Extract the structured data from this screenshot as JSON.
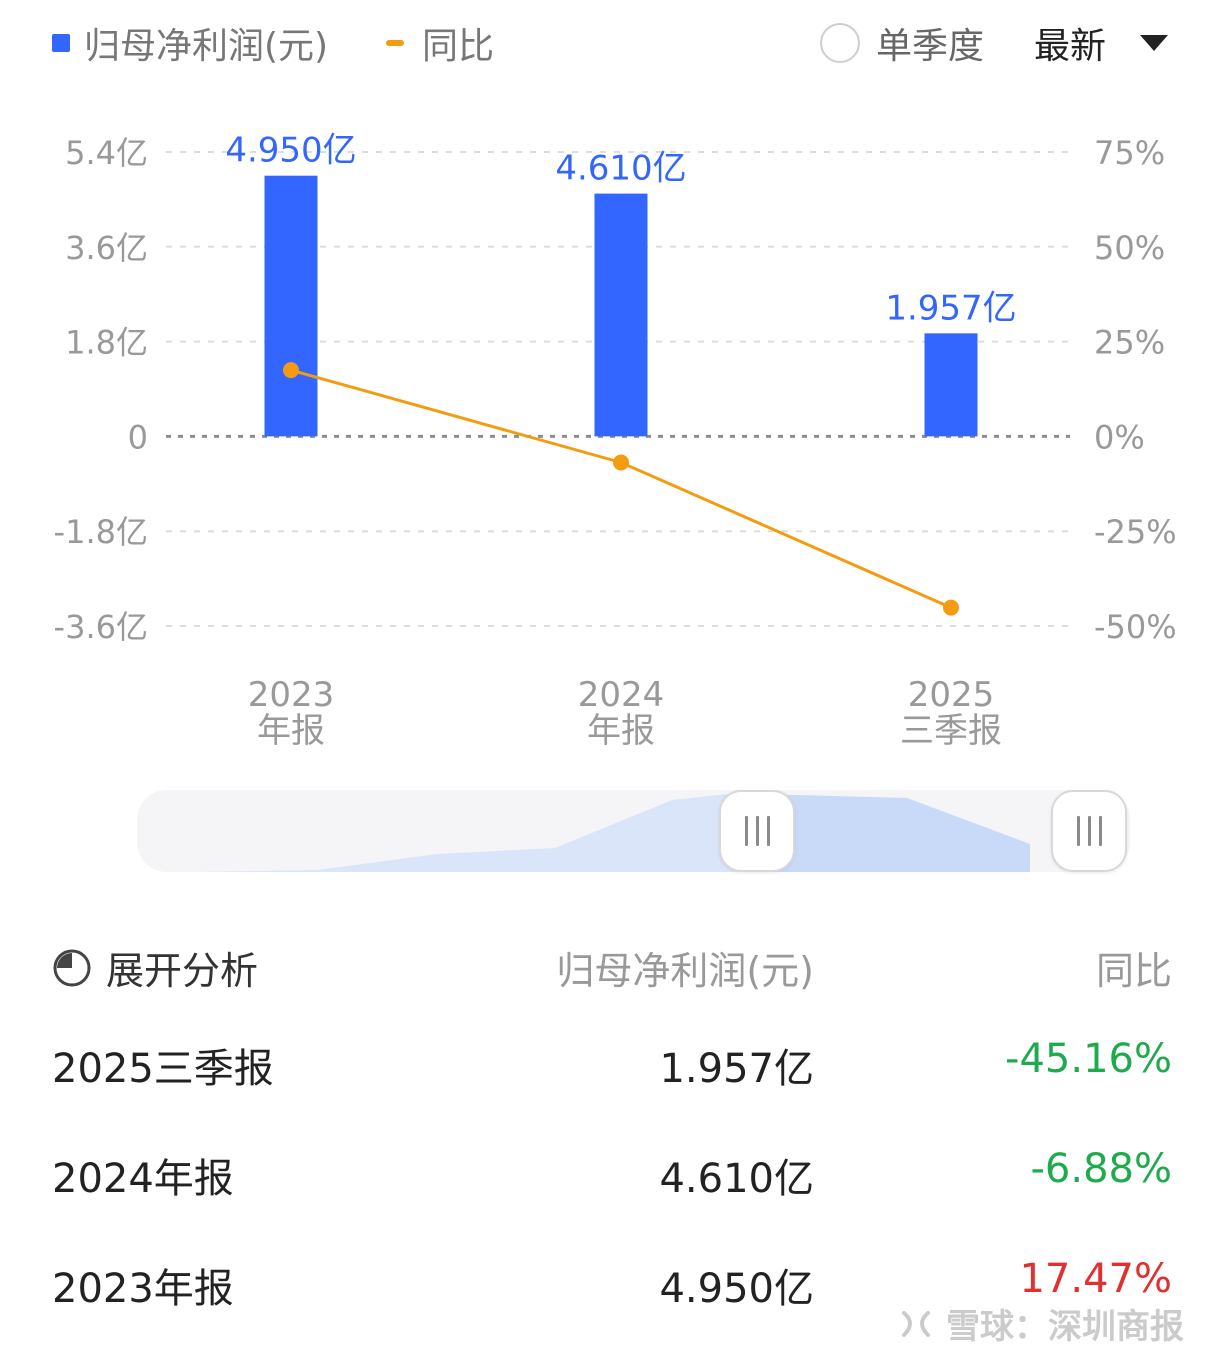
{
  "legend": {
    "bar_label": "归母净利润(元)",
    "line_label": "同比"
  },
  "controls": {
    "single_quarter_label": "单季度",
    "sort_label": "最新"
  },
  "colors": {
    "bar": "#3366ff",
    "line": "#f39c12",
    "positive": "#e03030",
    "negative": "#1faa4e",
    "slider_fill": "#c9d9f8"
  },
  "chart_data": {
    "type": "bar",
    "categories": [
      [
        "2023",
        "年报"
      ],
      [
        "2024",
        "年报"
      ],
      [
        "2025",
        "三季报"
      ]
    ],
    "series": [
      {
        "name": "归母净利润(元)",
        "type": "bar",
        "values": [
          4.95,
          4.61,
          1.957
        ],
        "value_labels": [
          "4.950亿",
          "4.610亿",
          "1.957亿"
        ],
        "axis": "left"
      },
      {
        "name": "同比",
        "type": "line",
        "values": [
          17.47,
          -6.88,
          -45.16
        ],
        "axis": "right"
      }
    ],
    "y_left": {
      "ticks": [
        5.4,
        3.6,
        1.8,
        0,
        -1.8,
        -3.6
      ],
      "tick_labels": [
        "5.4亿",
        "3.6亿",
        "1.8亿",
        "0",
        "-1.8亿",
        "-3.6亿"
      ],
      "ylim": [
        -3.6,
        5.4
      ]
    },
    "y_right": {
      "ticks": [
        75,
        50,
        25,
        0,
        -25,
        -50
      ],
      "tick_labels": [
        "75%",
        "50%",
        "25%",
        "0%",
        "-25%",
        "-50%"
      ],
      "ylim": [
        -50,
        75
      ]
    },
    "grid": true
  },
  "table": {
    "expand_label": "展开分析",
    "col_value": "归母净利润(元)",
    "col_yoy": "同比",
    "rows": [
      {
        "period": "2025三季报",
        "value": "1.957亿",
        "yoy": "-45.16%",
        "sign": "neg"
      },
      {
        "period": "2024年报",
        "value": "4.610亿",
        "yoy": "-6.88%",
        "sign": "neg"
      },
      {
        "period": "2023年报",
        "value": "4.950亿",
        "yoy": "17.47%",
        "sign": "pos"
      }
    ]
  },
  "watermark": {
    "text": "雪球：深圳商报"
  }
}
